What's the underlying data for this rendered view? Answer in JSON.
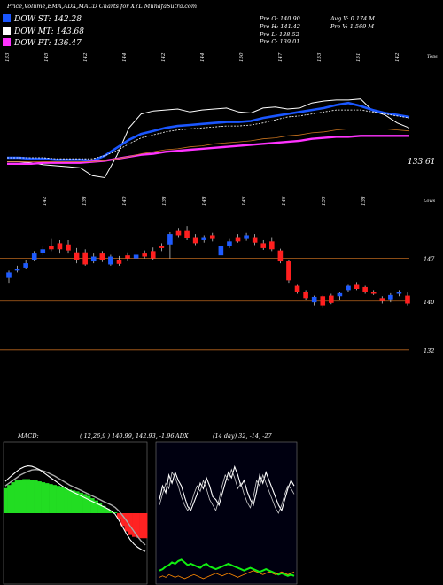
{
  "header": {
    "title": "Price,Volume,EMA,ADX,MACD Charts for XYL  MunafaSutra.com",
    "legend": [
      {
        "label": "DOW ST: 142.28",
        "color": "#1a56ff"
      },
      {
        "label": "DOW MT: 143.68",
        "color": "#ffffff"
      },
      {
        "label": "DOW PT: 136.47",
        "color": "#ff33ff"
      }
    ],
    "ohlc": {
      "open": "Pre   O: 140.90",
      "high": "Pre   H: 141.42",
      "low": "Pre   L: 138.52",
      "close": "Pre   C: 139.01"
    },
    "avg_volume": "Avg V: 0.174  M",
    "prev_volume": "Pre   V: 1.569 M"
  },
  "colors": {
    "up": "#1e5bff",
    "down": "#ff1f1f",
    "level_line": "#b8651e",
    "st": "#1a56ff",
    "mt": "#ffffff",
    "pt": "#ff33ff",
    "macd_fill": "#22dd22",
    "macd_neg": "#ff2222",
    "adx_green": "#11ee11",
    "adx_orange": "#ff8800"
  },
  "chart_data": [
    {
      "type": "line",
      "name": "EMA panel",
      "top_labels": [
        "133",
        "145",
        "142",
        "144",
        "142",
        "144",
        "150",
        "147",
        "153",
        "151",
        "142"
      ],
      "top_right_label": "Tops",
      "bottom_labels": [
        "142",
        "138",
        "140",
        "138",
        "148",
        "146",
        "146",
        "150",
        "138"
      ],
      "bottom_right_label": "Lows",
      "value_label": "133.61",
      "series": [
        {
          "name": "price",
          "values": [
            74,
            74,
            73,
            71,
            70,
            69,
            68,
            60,
            58,
            80,
            108,
            122,
            125,
            126,
            127,
            124,
            126,
            127,
            128,
            124,
            123,
            128,
            129,
            127,
            128,
            133,
            135,
            136,
            136,
            137,
            125,
            121,
            113,
            108
          ]
        },
        {
          "name": "DOW ST",
          "values": [
            78,
            78,
            77,
            77,
            76,
            76,
            76,
            75,
            80,
            88,
            96,
            102,
            105,
            108,
            110,
            111,
            112,
            113,
            114,
            114,
            115,
            118,
            120,
            122,
            124,
            126,
            128,
            131,
            133,
            130,
            126,
            123,
            121,
            119
          ]
        },
        {
          "name": "DOW MT",
          "values": [
            78,
            78,
            78,
            78,
            77,
            77,
            77,
            77,
            80,
            85,
            92,
            98,
            101,
            104,
            106,
            107,
            108,
            109,
            110,
            110,
            111,
            113,
            116,
            119,
            120,
            122,
            124,
            126,
            126,
            126,
            124,
            122,
            120,
            118
          ]
        },
        {
          "name": "DOW PT",
          "values": [
            72,
            72,
            72,
            73,
            73,
            73,
            73,
            74,
            75,
            77,
            79,
            81,
            82,
            84,
            85,
            86,
            87,
            88,
            89,
            90,
            91,
            92,
            93,
            94,
            95,
            97,
            98,
            99,
            99,
            100,
            100,
            100,
            100,
            100
          ]
        },
        {
          "name": "long EMA",
          "values": [
            74,
            74,
            74,
            74,
            74,
            74,
            74,
            74,
            75,
            77,
            79,
            82,
            84,
            86,
            87,
            89,
            90,
            92,
            93,
            94,
            95,
            97,
            98,
            100,
            101,
            103,
            104,
            106,
            107,
            107,
            107,
            107,
            106,
            105
          ]
        }
      ]
    },
    {
      "type": "candlestick",
      "name": "price panel",
      "levels": [
        "147",
        "140",
        "132"
      ],
      "ylim": [
        129.5,
        154.5
      ],
      "candles": [
        {
          "o": 143.8,
          "c": 144.7,
          "h": 145.0,
          "l": 143.0
        },
        {
          "o": 145.0,
          "c": 145.3,
          "h": 145.8,
          "l": 144.7
        },
        {
          "o": 145.5,
          "c": 146.2,
          "h": 146.8,
          "l": 145.2
        },
        {
          "o": 146.8,
          "c": 147.8,
          "h": 148.2,
          "l": 146.5
        },
        {
          "o": 147.9,
          "c": 148.5,
          "h": 149.0,
          "l": 147.5
        },
        {
          "o": 149.0,
          "c": 148.5,
          "h": 150.2,
          "l": 148.2
        },
        {
          "o": 149.5,
          "c": 148.5,
          "h": 150.0,
          "l": 147.8
        },
        {
          "o": 149.3,
          "c": 148.3,
          "h": 150.0,
          "l": 147.8
        },
        {
          "o": 148.0,
          "c": 146.8,
          "h": 148.7,
          "l": 146.2
        },
        {
          "o": 148.0,
          "c": 146.0,
          "h": 148.5,
          "l": 145.8
        },
        {
          "o": 146.5,
          "c": 147.3,
          "h": 147.8,
          "l": 146.2
        },
        {
          "o": 147.8,
          "c": 146.8,
          "h": 148.2,
          "l": 146.4
        },
        {
          "o": 146.0,
          "c": 147.3,
          "h": 147.6,
          "l": 145.8
        },
        {
          "o": 146.8,
          "c": 146.1,
          "h": 147.4,
          "l": 145.8
        },
        {
          "o": 147.5,
          "c": 147.0,
          "h": 148.0,
          "l": 146.6
        },
        {
          "o": 147.0,
          "c": 147.6,
          "h": 148.0,
          "l": 146.8
        },
        {
          "o": 147.8,
          "c": 147.3,
          "h": 148.3,
          "l": 147.0
        },
        {
          "o": 148.2,
          "c": 147.0,
          "h": 148.8,
          "l": 146.8
        },
        {
          "o": 149.0,
          "c": 148.7,
          "h": 149.5,
          "l": 148.2
        },
        {
          "o": 149.3,
          "c": 151.0,
          "h": 151.3,
          "l": 147.0
        },
        {
          "o": 151.5,
          "c": 150.8,
          "h": 152.0,
          "l": 150.5
        },
        {
          "o": 151.5,
          "c": 150.3,
          "h": 152.3,
          "l": 150.0
        },
        {
          "o": 150.5,
          "c": 149.5,
          "h": 151.0,
          "l": 149.2
        },
        {
          "o": 150.0,
          "c": 150.5,
          "h": 150.8,
          "l": 149.6
        },
        {
          "o": 150.8,
          "c": 150.2,
          "h": 151.2,
          "l": 149.8
        },
        {
          "o": 147.5,
          "c": 149.0,
          "h": 149.3,
          "l": 147.2
        },
        {
          "o": 149.0,
          "c": 149.8,
          "h": 150.2,
          "l": 148.7
        },
        {
          "o": 150.5,
          "c": 149.8,
          "h": 151.0,
          "l": 149.6
        },
        {
          "o": 150.2,
          "c": 150.8,
          "h": 151.2,
          "l": 149.9
        },
        {
          "o": 150.5,
          "c": 149.6,
          "h": 151.0,
          "l": 149.2
        },
        {
          "o": 149.5,
          "c": 148.7,
          "h": 150.0,
          "l": 148.4
        },
        {
          "o": 149.8,
          "c": 148.5,
          "h": 150.5,
          "l": 148.2
        },
        {
          "o": 148.3,
          "c": 146.5,
          "h": 148.6,
          "l": 146.2
        },
        {
          "o": 146.5,
          "c": 143.4,
          "h": 146.8,
          "l": 143.0
        },
        {
          "o": 142.5,
          "c": 141.5,
          "h": 142.8,
          "l": 141.2
        },
        {
          "o": 141.5,
          "c": 140.5,
          "h": 141.8,
          "l": 140.2
        },
        {
          "o": 139.8,
          "c": 140.7,
          "h": 140.9,
          "l": 139.3
        },
        {
          "o": 140.8,
          "c": 139.3,
          "h": 141.0,
          "l": 139.0
        },
        {
          "o": 140.9,
          "c": 139.7,
          "h": 141.2,
          "l": 139.5
        },
        {
          "o": 140.8,
          "c": 141.3,
          "h": 141.5,
          "l": 140.2
        },
        {
          "o": 141.8,
          "c": 142.5,
          "h": 142.8,
          "l": 141.5
        },
        {
          "o": 142.8,
          "c": 142.0,
          "h": 143.1,
          "l": 141.8
        },
        {
          "o": 142.3,
          "c": 141.5,
          "h": 142.5,
          "l": 141.2
        },
        {
          "o": 141.5,
          "c": 141.2,
          "h": 141.8,
          "l": 141.0
        },
        {
          "o": 140.5,
          "c": 140.0,
          "h": 140.8,
          "l": 139.6
        },
        {
          "o": 140.3,
          "c": 141.0,
          "h": 141.3,
          "l": 139.8
        },
        {
          "o": 141.2,
          "c": 141.5,
          "h": 141.8,
          "l": 140.8
        },
        {
          "o": 140.9,
          "c": 139.6,
          "h": 141.4,
          "l": 139.3
        }
      ]
    },
    {
      "type": "area",
      "name": "MACD",
      "label": "MACD:",
      "params": "( 12,26,9 ) 140.99,  142.93,  -1.96",
      "histogram": [
        0.55,
        0.62,
        0.68,
        0.72,
        0.74,
        0.75,
        0.75,
        0.74,
        0.72,
        0.7,
        0.68,
        0.66,
        0.64,
        0.62,
        0.6,
        0.58,
        0.55,
        0.52,
        0.5,
        0.48,
        0.45,
        0.42,
        0.38,
        0.33,
        0.28,
        0.22,
        0.16,
        0.1,
        0.05,
        0.02,
        -0.12,
        -0.28,
        -0.4,
        -0.48,
        -0.52,
        -0.54,
        -0.55,
        -0.55
      ],
      "macd_line": [
        0.7,
        0.78,
        0.85,
        0.92,
        0.98,
        1.02,
        1.04,
        1.03,
        1.0,
        0.96,
        0.9,
        0.84,
        0.78,
        0.72,
        0.66,
        0.6,
        0.55,
        0.5,
        0.46,
        0.42,
        0.38,
        0.34,
        0.3,
        0.26,
        0.22,
        0.18,
        0.14,
        0.1,
        0.05,
        -0.02,
        -0.15,
        -0.3,
        -0.45,
        -0.58,
        -0.68,
        -0.75,
        -0.8,
        -0.84
      ],
      "signal_line": [
        0.6,
        0.66,
        0.72,
        0.78,
        0.84,
        0.88,
        0.92,
        0.95,
        0.96,
        0.95,
        0.93,
        0.9,
        0.86,
        0.82,
        0.77,
        0.72,
        0.67,
        0.62,
        0.58,
        0.54,
        0.5,
        0.46,
        0.42,
        0.38,
        0.34,
        0.3,
        0.26,
        0.22,
        0.18,
        0.13,
        0.05,
        -0.05,
        -0.16,
        -0.28,
        -0.4,
        -0.52,
        -0.62,
        -0.7
      ],
      "ylim": [
        -1.5,
        1.5
      ]
    },
    {
      "type": "line",
      "name": "ADX",
      "label": "ADX",
      "params": "(14  day) 32,  -14,  -27",
      "series": [
        {
          "name": "DI+",
          "values": [
            60,
            70,
            65,
            78,
            72,
            80,
            74,
            70,
            62,
            55,
            52,
            58,
            64,
            72,
            68,
            76,
            70,
            62,
            60,
            56,
            64,
            72,
            80,
            76,
            84,
            78,
            70,
            74,
            66,
            60,
            56,
            66,
            78,
            72,
            80,
            74,
            68,
            62,
            56,
            52,
            60,
            68,
            74,
            70
          ]
        },
        {
          "name": "DI-",
          "values": [
            56,
            64,
            72,
            68,
            80,
            76,
            70,
            62,
            56,
            52,
            56,
            64,
            70,
            66,
            74,
            68,
            60,
            56,
            52,
            60,
            70,
            78,
            74,
            82,
            76,
            68,
            72,
            64,
            58,
            54,
            62,
            74,
            70,
            78,
            72,
            66,
            60,
            54,
            50,
            56,
            64,
            70,
            68,
            64
          ]
        },
        {
          "name": "ADX",
          "values": [
            8,
            9,
            11,
            12,
            14,
            13,
            15,
            16,
            14,
            12,
            13,
            12,
            11,
            10,
            12,
            13,
            11,
            10,
            9,
            10,
            11,
            12,
            13,
            12,
            11,
            10,
            9,
            8,
            9,
            10,
            9,
            8,
            7,
            8,
            9,
            8,
            7,
            6,
            5,
            6,
            5,
            4,
            5,
            4
          ]
        },
        {
          "name": "DX",
          "values": [
            3,
            4,
            3,
            5,
            4,
            3,
            4,
            3,
            2,
            3,
            4,
            5,
            4,
            3,
            2,
            3,
            4,
            5,
            6,
            5,
            4,
            5,
            6,
            5,
            4,
            3,
            4,
            5,
            6,
            7,
            8,
            7,
            6,
            5,
            6,
            7,
            6,
            5,
            6,
            7,
            6,
            5,
            6,
            7
          ]
        }
      ]
    }
  ]
}
